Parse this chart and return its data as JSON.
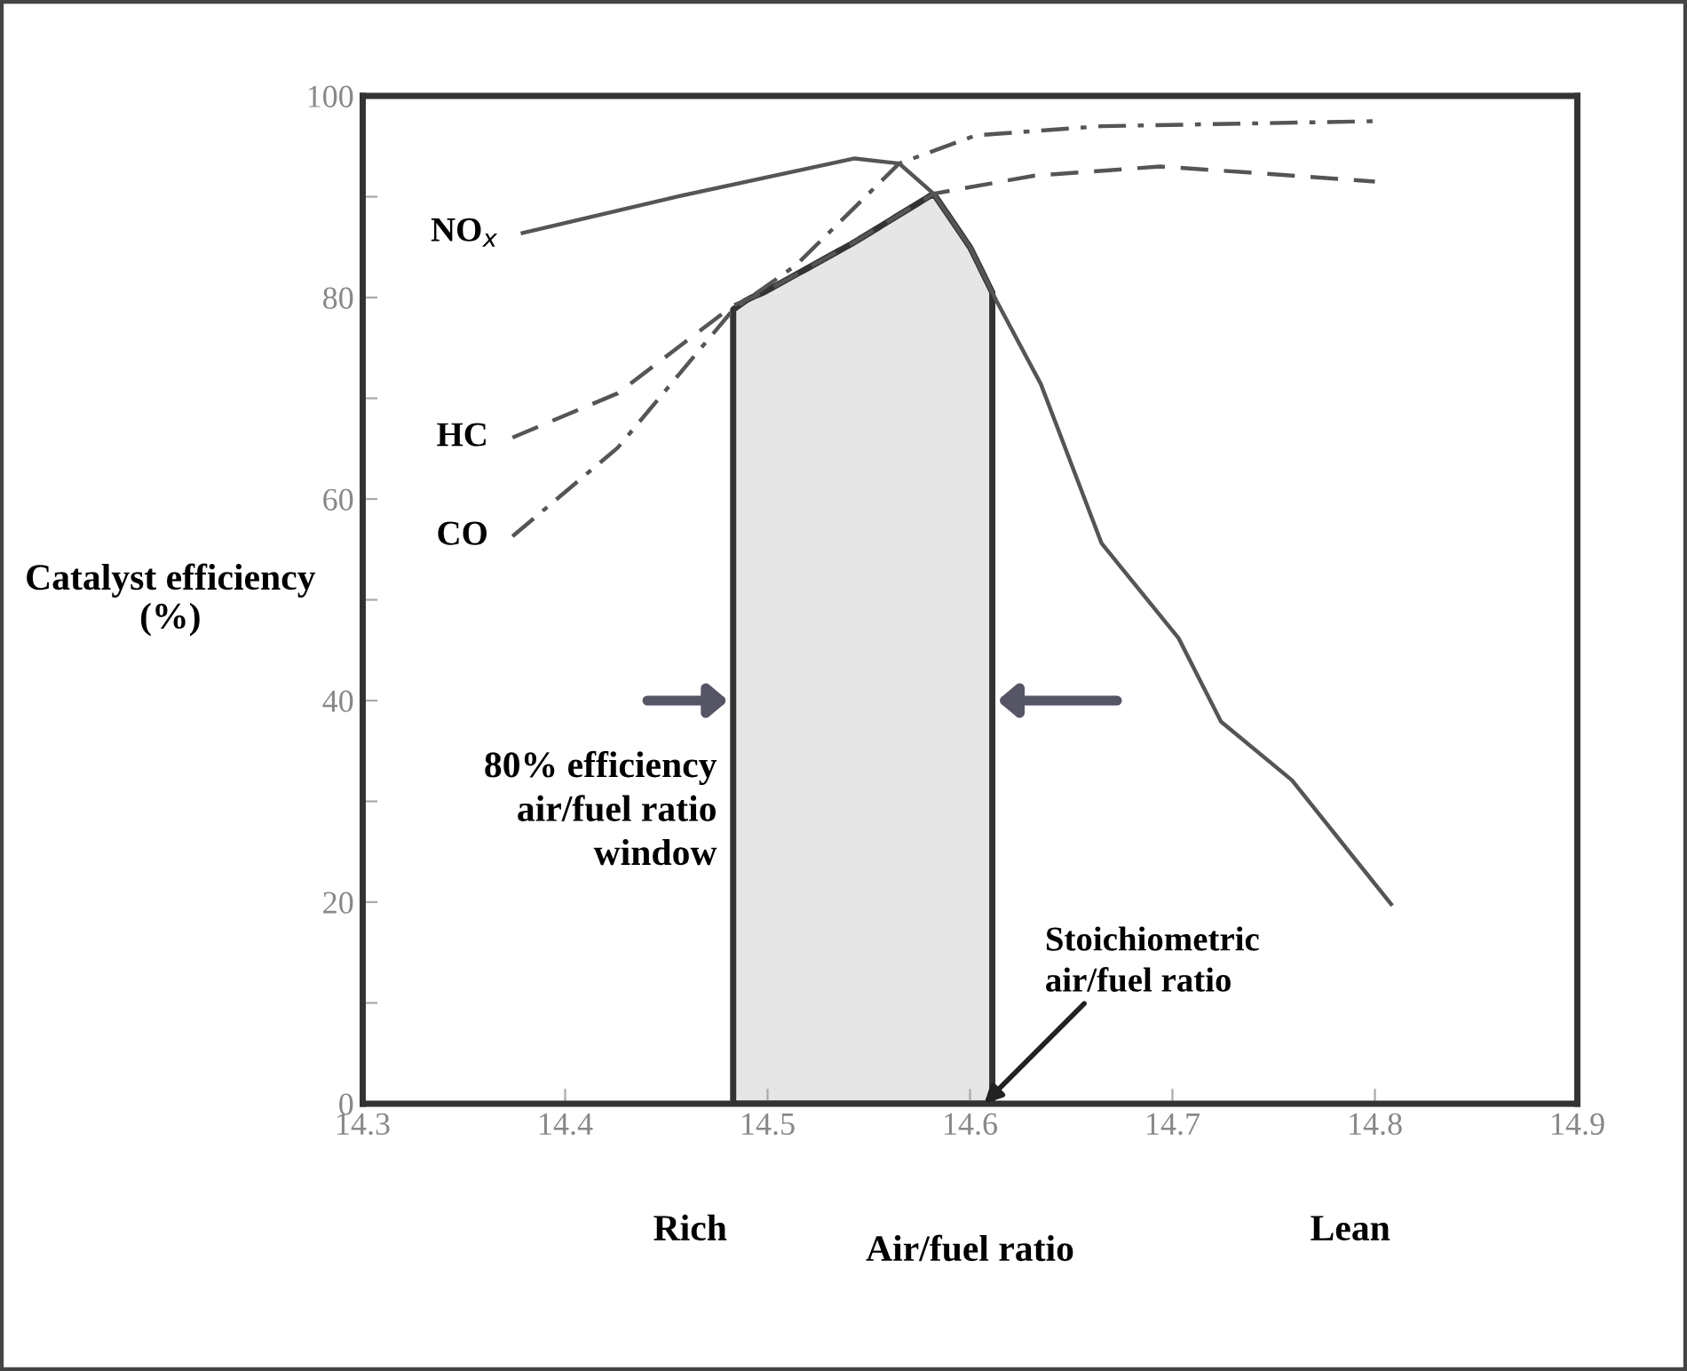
{
  "chart_data": {
    "type": "line",
    "xlabel": "Air/fuel ratio",
    "ylabel": "Catalyst efficiency\n(%)",
    "xlim": [
      14.3,
      14.9
    ],
    "xticks": [
      14.3,
      14.4,
      14.5,
      14.6,
      14.7,
      14.8,
      14.9
    ],
    "ylim": [
      0,
      100
    ],
    "yticks": [
      0,
      {
        "value": 10,
        "label": null
      },
      20,
      {
        "value": 30,
        "label": null
      },
      40,
      {
        "value": 50,
        "label": null
      },
      60,
      {
        "value": 70,
        "label": null
      },
      80,
      {
        "value": 90,
        "label": null
      },
      100
    ],
    "grid": false,
    "legend": false,
    "marker": "none",
    "series": [
      {
        "name": "NO$_{x}$",
        "color": "#555555",
        "line_style": "solid",
        "x": [
          14.379,
          14.455,
          14.543,
          14.565,
          14.582,
          14.6,
          14.613,
          14.635,
          14.665,
          14.703,
          14.724,
          14.759,
          14.808
        ],
        "values": [
          86.4,
          90.0,
          93.8,
          93.3,
          90.3,
          85.0,
          79.7,
          71.4,
          55.6,
          46.2,
          37.9,
          32.1,
          19.8
        ]
      },
      {
        "name": "HC",
        "color": "#555555",
        "line_style": "dashed",
        "x": [
          14.374,
          14.426,
          14.483,
          14.499,
          14.543,
          14.582,
          14.632,
          14.694,
          14.738,
          14.8
        ],
        "values": [
          66.1,
          70.5,
          79.2,
          80.6,
          85.5,
          90.3,
          92.1,
          93.0,
          92.4,
          91.5
        ]
      },
      {
        "name": "CO",
        "color": "#555555",
        "line_style": "dashdot",
        "x": [
          14.374,
          14.426,
          14.483,
          14.514,
          14.565,
          14.603,
          14.665,
          14.8
        ],
        "values": [
          56.3,
          65.1,
          78.8,
          83.2,
          93.3,
          96.1,
          97.0,
          97.5
        ]
      }
    ],
    "bands": [
      {
        "axis": "x",
        "from": 14.483,
        "to": 14.611,
        "label": "80% efficiency\nair/fuel ratio\nwindow",
        "color": "#e6e6e6"
      }
    ],
    "annotations": [
      {
        "text": "Stoichiometric\nair/fuel ratio",
        "x": 14.607,
        "y": 0
      },
      "Rich",
      "Lean"
    ]
  }
}
